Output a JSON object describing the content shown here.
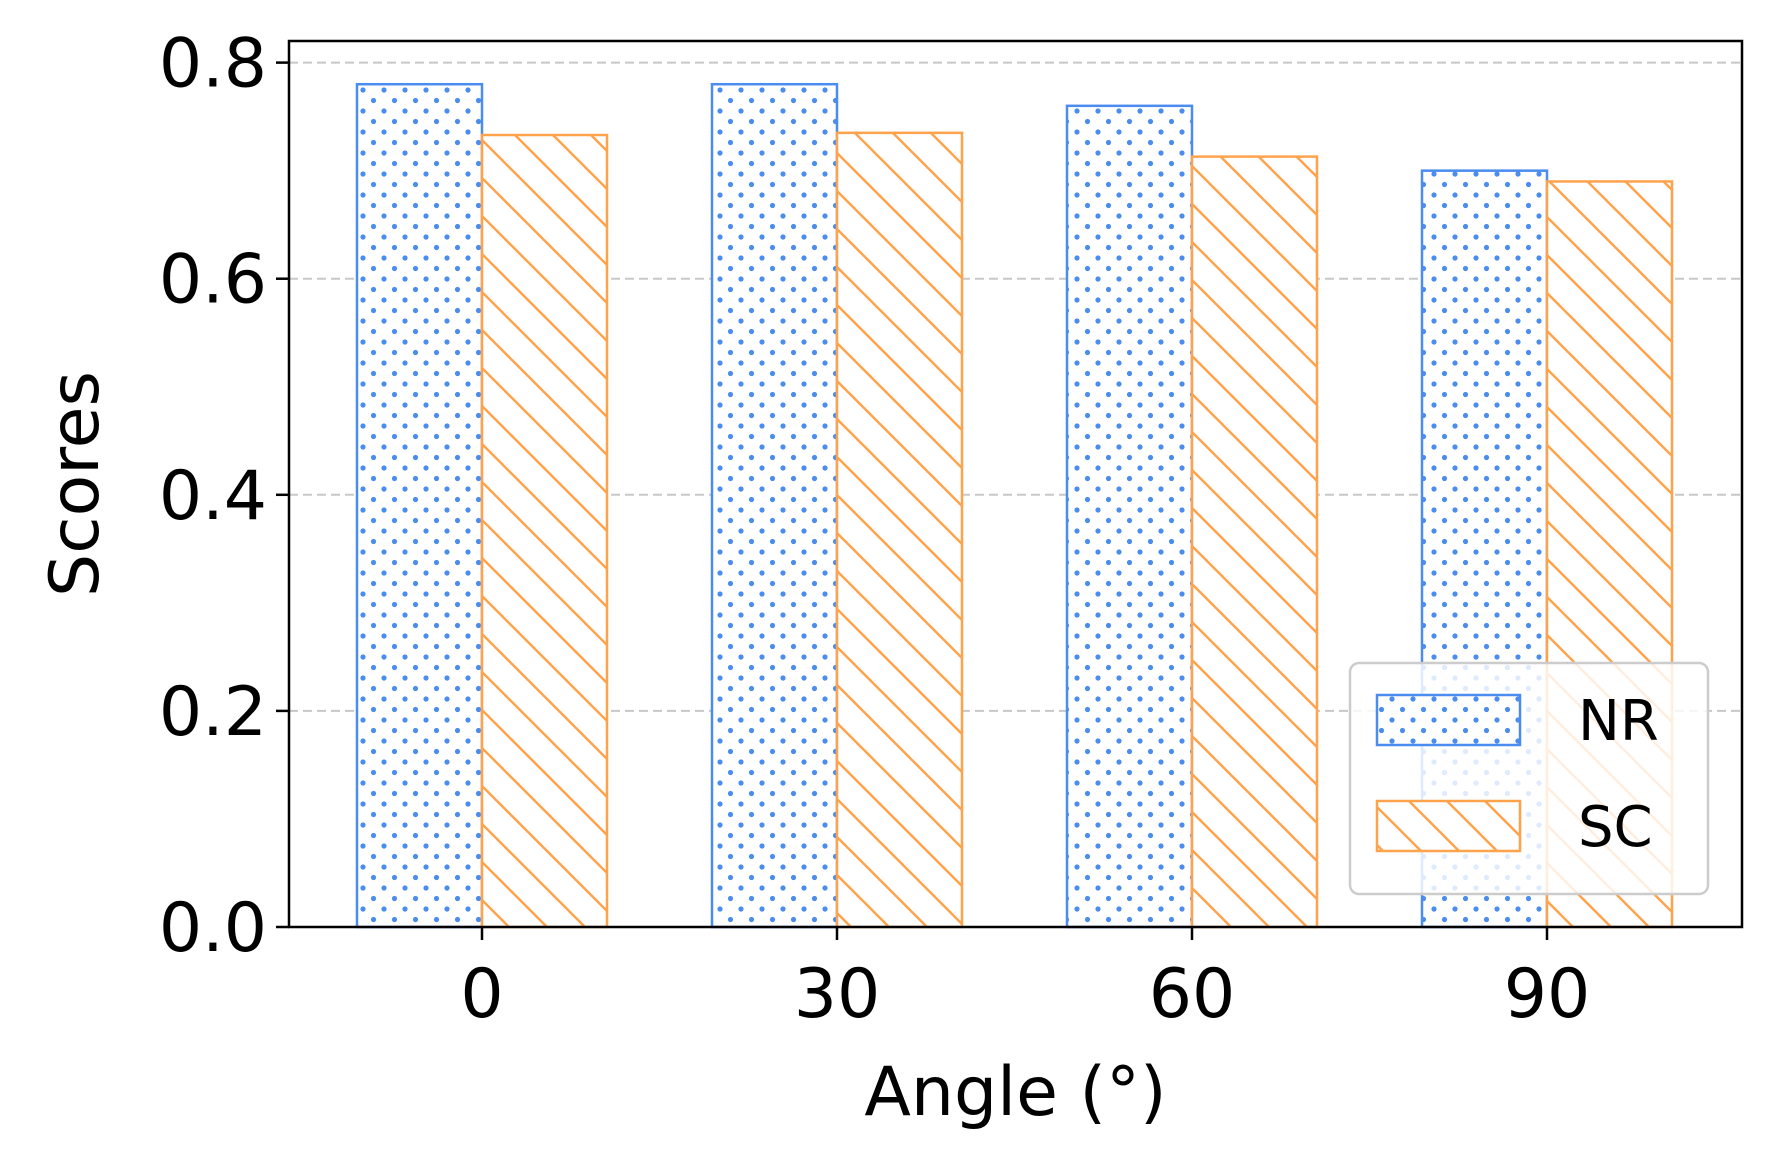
{
  "chart_data": {
    "type": "bar",
    "categories": [
      "0",
      "30",
      "60",
      "90"
    ],
    "series": [
      {
        "name": "NR",
        "values": [
          0.78,
          0.78,
          0.76,
          0.7
        ],
        "color": "#4a8cf0",
        "pattern": "dots"
      },
      {
        "name": "SC",
        "values": [
          0.733,
          0.735,
          0.713,
          0.69
        ],
        "color": "#ffa24c",
        "pattern": "diagonal-hatch"
      }
    ],
    "title": "",
    "xlabel": "Angle (°)",
    "ylabel": "Scores",
    "ylim": [
      0,
      0.82
    ],
    "yticks": [
      "0.0",
      "0.2",
      "0.4",
      "0.6",
      "0.8"
    ],
    "grid": "y-dashed",
    "legend": {
      "position": "bottom-right",
      "entries": [
        "NR",
        "SC"
      ]
    }
  }
}
